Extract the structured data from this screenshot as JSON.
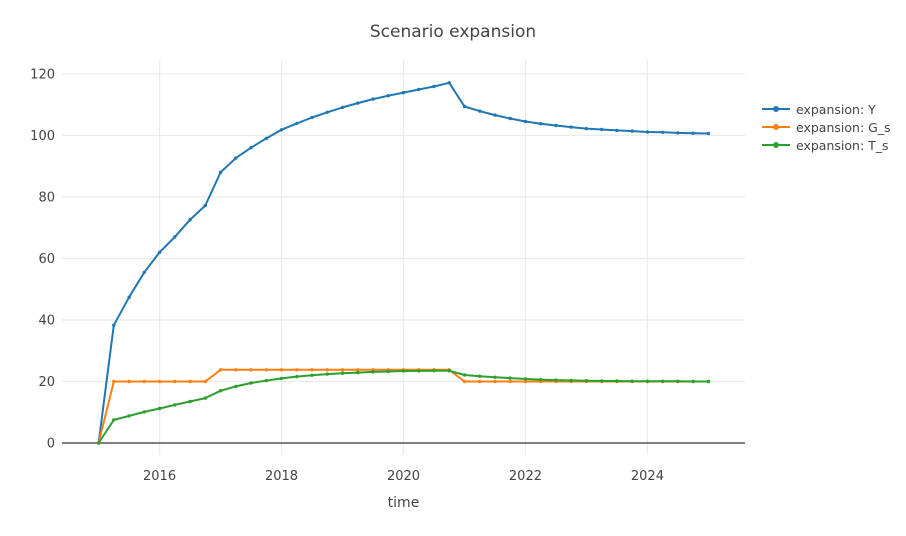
{
  "chart_data": {
    "type": "line",
    "mode": "lines+markers",
    "title": "Scenario expansion",
    "xlabel": "time",
    "ylabel": "",
    "grid": true,
    "legend_position": "right",
    "xlim": [
      2014.4,
      2025.6
    ],
    "ylim": [
      -3.9,
      124.5
    ],
    "xticks": [
      2016,
      2018,
      2020,
      2022,
      2024
    ],
    "yticks": [
      0,
      20,
      40,
      60,
      80,
      100,
      120
    ],
    "colors": {
      "background": "#ffffff",
      "grid": "#ebebeb",
      "zeroline": "#555555",
      "text": "#444444"
    },
    "x": [
      2015.0,
      2015.25,
      2015.5,
      2015.75,
      2016.0,
      2016.25,
      2016.5,
      2016.75,
      2017.0,
      2017.25,
      2017.5,
      2017.75,
      2018.0,
      2018.25,
      2018.5,
      2018.75,
      2019.0,
      2019.25,
      2019.5,
      2019.75,
      2020.0,
      2020.25,
      2020.5,
      2020.75,
      2021.0,
      2021.25,
      2021.5,
      2021.75,
      2022.0,
      2022.25,
      2022.5,
      2022.75,
      2023.0,
      2023.25,
      2023.5,
      2023.75,
      2024.0,
      2024.25,
      2024.5,
      2024.75,
      2025.0
    ],
    "series": [
      {
        "name": "expansion: Y",
        "color": "#1f77b4",
        "values": [
          0,
          38.3,
          47.4,
          55.5,
          62.0,
          67.0,
          72.6,
          77.2,
          88.0,
          92.6,
          96.0,
          99.0,
          101.8,
          103.9,
          105.8,
          107.5,
          109.1,
          110.5,
          111.8,
          112.9,
          113.9,
          114.9,
          115.9,
          117.1,
          109.4,
          107.9,
          106.6,
          105.5,
          104.5,
          103.8,
          103.2,
          102.7,
          102.2,
          101.9,
          101.6,
          101.4,
          101.1,
          101.0,
          100.8,
          100.7,
          100.6
        ]
      },
      {
        "name": "expansion: G_s",
        "color": "#ff7f0e",
        "values": [
          0,
          20,
          20,
          20,
          20,
          20,
          20,
          20,
          23.8,
          23.8,
          23.8,
          23.8,
          23.8,
          23.8,
          23.8,
          23.8,
          23.8,
          23.8,
          23.8,
          23.8,
          23.8,
          23.8,
          23.8,
          23.8,
          20,
          20,
          20,
          20,
          20,
          20,
          20,
          20,
          20,
          20,
          20,
          20,
          20,
          20,
          20,
          20,
          20
        ]
      },
      {
        "name": "expansion: T_s",
        "color": "#2ca02c",
        "values": [
          0,
          7.5,
          8.8,
          10.1,
          11.2,
          12.4,
          13.5,
          14.6,
          17.0,
          18.4,
          19.5,
          20.3,
          21.0,
          21.6,
          22.0,
          22.4,
          22.7,
          22.9,
          23.1,
          23.25,
          23.4,
          23.45,
          23.5,
          23.5,
          22.1,
          21.7,
          21.4,
          21.1,
          20.8,
          20.6,
          20.45,
          20.35,
          20.25,
          20.2,
          20.15,
          20.1,
          20.1,
          20.05,
          20.05,
          20.0,
          20.0
        ]
      }
    ]
  }
}
